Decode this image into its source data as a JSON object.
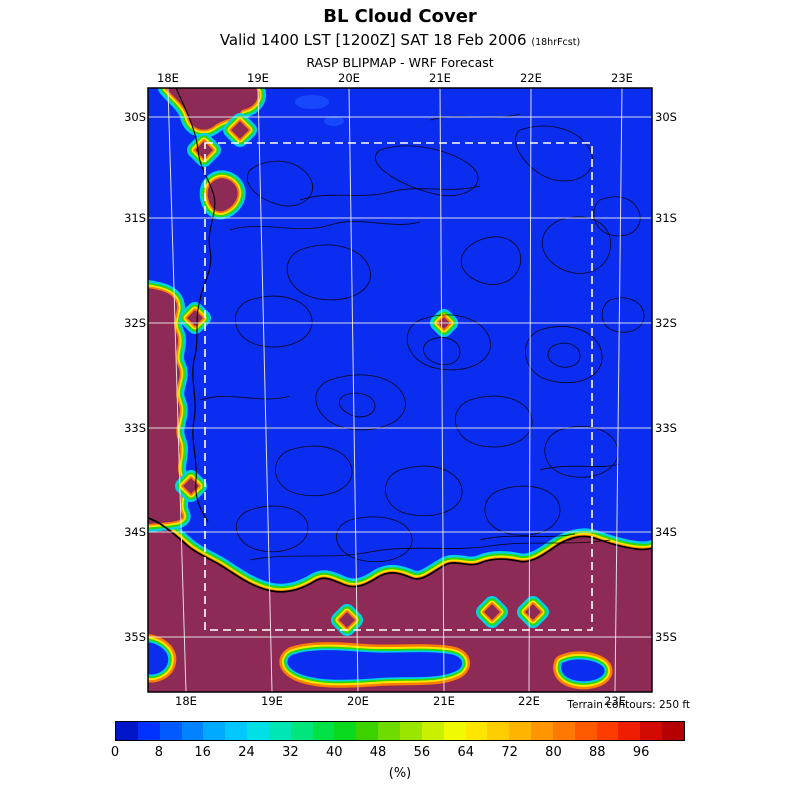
{
  "header": {
    "title": "BL Cloud Cover",
    "valid_line": "Valid 1400 LST [1200Z] SAT 18 Feb 2006",
    "fcst_suffix": "(18hrFcst)",
    "subtitle": "RASP BLIPMAP - WRF Forecast"
  },
  "map": {
    "lon_labels": [
      "18E",
      "19E",
      "20E",
      "21E",
      "22E",
      "23E"
    ],
    "lat_labels": [
      "30S",
      "31S",
      "32S",
      "33S",
      "34S",
      "35S"
    ],
    "colors": {
      "clear": "#0b2df0",
      "overcast": "#8d2a55",
      "halo_cyan": "#00cfe8",
      "halo_green": "#30d800",
      "halo_yellow": "#ffe400",
      "halo_orange": "#ff7d00",
      "grid": "#f0f0f0",
      "contour": "#000000"
    }
  },
  "footer": {
    "terrain_note": "Terrain contours: 250 ft"
  },
  "colorbar": {
    "ticks": [
      "0",
      "8",
      "16",
      "24",
      "32",
      "40",
      "48",
      "56",
      "64",
      "72",
      "80",
      "88",
      "96"
    ],
    "unit": "(%)",
    "colors": [
      "#0014c8",
      "#0032ff",
      "#005aff",
      "#0082ff",
      "#00aaff",
      "#00c8ff",
      "#00e1e6",
      "#00e6b4",
      "#00e67d",
      "#00e146",
      "#0ada1e",
      "#3cd200",
      "#6edc00",
      "#9be600",
      "#c8f000",
      "#f0fa00",
      "#ffe600",
      "#ffcd00",
      "#ffb400",
      "#ff9600",
      "#ff7800",
      "#ff5a00",
      "#ff3c00",
      "#f01e00",
      "#d20a00",
      "#b40000"
    ]
  }
}
